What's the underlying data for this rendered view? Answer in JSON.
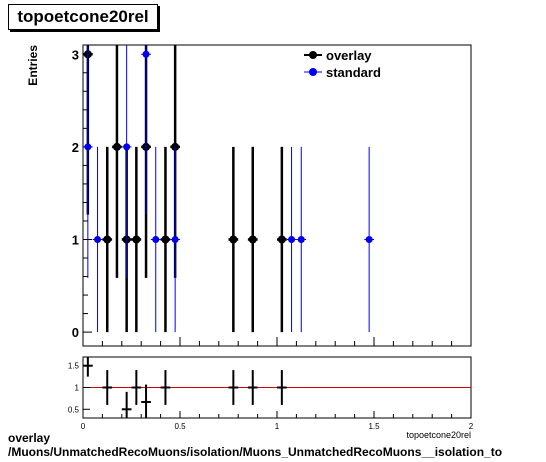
{
  "chart_data": [
    {
      "type": "scatter",
      "title": "topoetcone20rel",
      "ylabel": "Entries",
      "xlabel": "topoetcone20rel",
      "xlim": [
        0,
        2
      ],
      "ylim": [
        -0.15,
        3.1
      ],
      "y_ticks": [
        "0",
        "1",
        "2",
        "3"
      ],
      "legend_position": "top-right",
      "series": [
        {
          "name": "overlay",
          "color": "#000000",
          "x": [
            0.025,
            0.125,
            0.175,
            0.225,
            0.275,
            0.325,
            0.425,
            0.475,
            0.775,
            0.875,
            1.025
          ],
          "y": [
            3,
            1,
            2,
            1,
            1,
            2,
            1,
            2,
            1,
            1,
            1
          ]
        },
        {
          "name": "standard",
          "color": "#0000ee",
          "x": [
            0.025,
            0.075,
            0.225,
            0.325,
            0.375,
            0.475,
            1.075,
            1.125,
            1.475
          ],
          "y": [
            2,
            1,
            2,
            3,
            1,
            1,
            1,
            1,
            1
          ]
        }
      ]
    },
    {
      "type": "scatter",
      "title": "",
      "xlim": [
        0,
        2
      ],
      "ylim": [
        0.3,
        1.7
      ],
      "x_ticks": [
        "0",
        "0.5",
        "1",
        "1.5",
        "2"
      ],
      "y_ticks": [
        "0.5",
        "1",
        "1.5"
      ],
      "reference_line": 1.0,
      "reference_color": "#cc0000",
      "series": [
        {
          "name": "",
          "color": "#000000",
          "x": [
            0.025,
            0.125,
            0.225,
            0.275,
            0.325,
            0.425,
            0.775,
            0.875,
            1.025
          ],
          "y": [
            1.5,
            1.0,
            0.5,
            1.0,
            0.667,
            1.0,
            1.0,
            1.0,
            1.0
          ]
        }
      ]
    }
  ],
  "caption_line1": "overlay",
  "caption_line2": "/Muons/UnmatchedRecoMuons/isolation/Muons_UnmatchedRecoMuons__isolation_to"
}
